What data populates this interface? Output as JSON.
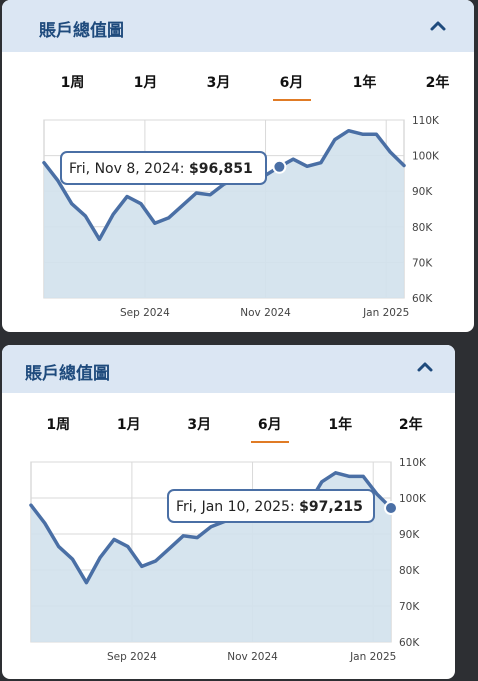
{
  "panels": [
    {
      "title": "賬戶總值圖",
      "tabs": [
        "1周",
        "1月",
        "3月",
        "6月",
        "1年",
        "2年"
      ],
      "active_tab": "6月",
      "tooltip": {
        "date": "Fri, Nov 8, 2024:",
        "value": "$96,851"
      }
    },
    {
      "title": "賬戶總值圖",
      "tabs": [
        "1周",
        "1月",
        "3月",
        "6月",
        "1年",
        "2年"
      ],
      "active_tab": "6月",
      "tooltip": {
        "date": "Fri, Jan 10, 2025:",
        "value": "$97,215"
      }
    }
  ],
  "colors": {
    "header_bg": "#dbe6f3",
    "title": "#1f4b7d",
    "line": "#4a6fa5",
    "area": "#d2e1ec",
    "active_underline": "#e07b25"
  },
  "chart_data": {
    "type": "area",
    "y_ticks": [
      "110K",
      "100K",
      "90K",
      "80K",
      "70K",
      "60K"
    ],
    "ylim": [
      60000,
      110000
    ],
    "x_ticks": [
      "Sep 2024",
      "Nov 2024",
      "Jan 2025"
    ],
    "x": [
      "2024-07-12",
      "2024-07-19",
      "2024-07-26",
      "2024-08-02",
      "2024-08-09",
      "2024-08-16",
      "2024-08-23",
      "2024-08-30",
      "2024-09-06",
      "2024-09-13",
      "2024-09-20",
      "2024-09-27",
      "2024-10-04",
      "2024-10-11",
      "2024-10-18",
      "2024-10-25",
      "2024-11-01",
      "2024-11-08",
      "2024-11-15",
      "2024-11-22",
      "2024-11-29",
      "2024-12-06",
      "2024-12-13",
      "2024-12-20",
      "2024-12-27",
      "2025-01-03",
      "2025-01-10"
    ],
    "series": [
      {
        "values": [
          98000,
          93000,
          86500,
          83000,
          76500,
          83500,
          88500,
          86500,
          81000,
          82500,
          86000,
          89500,
          89000,
          92000,
          93500,
          94000,
          94500,
          96851,
          99000,
          97000,
          98000,
          104500,
          107000,
          106000,
          106000,
          101000,
          97215
        ]
      }
    ]
  }
}
